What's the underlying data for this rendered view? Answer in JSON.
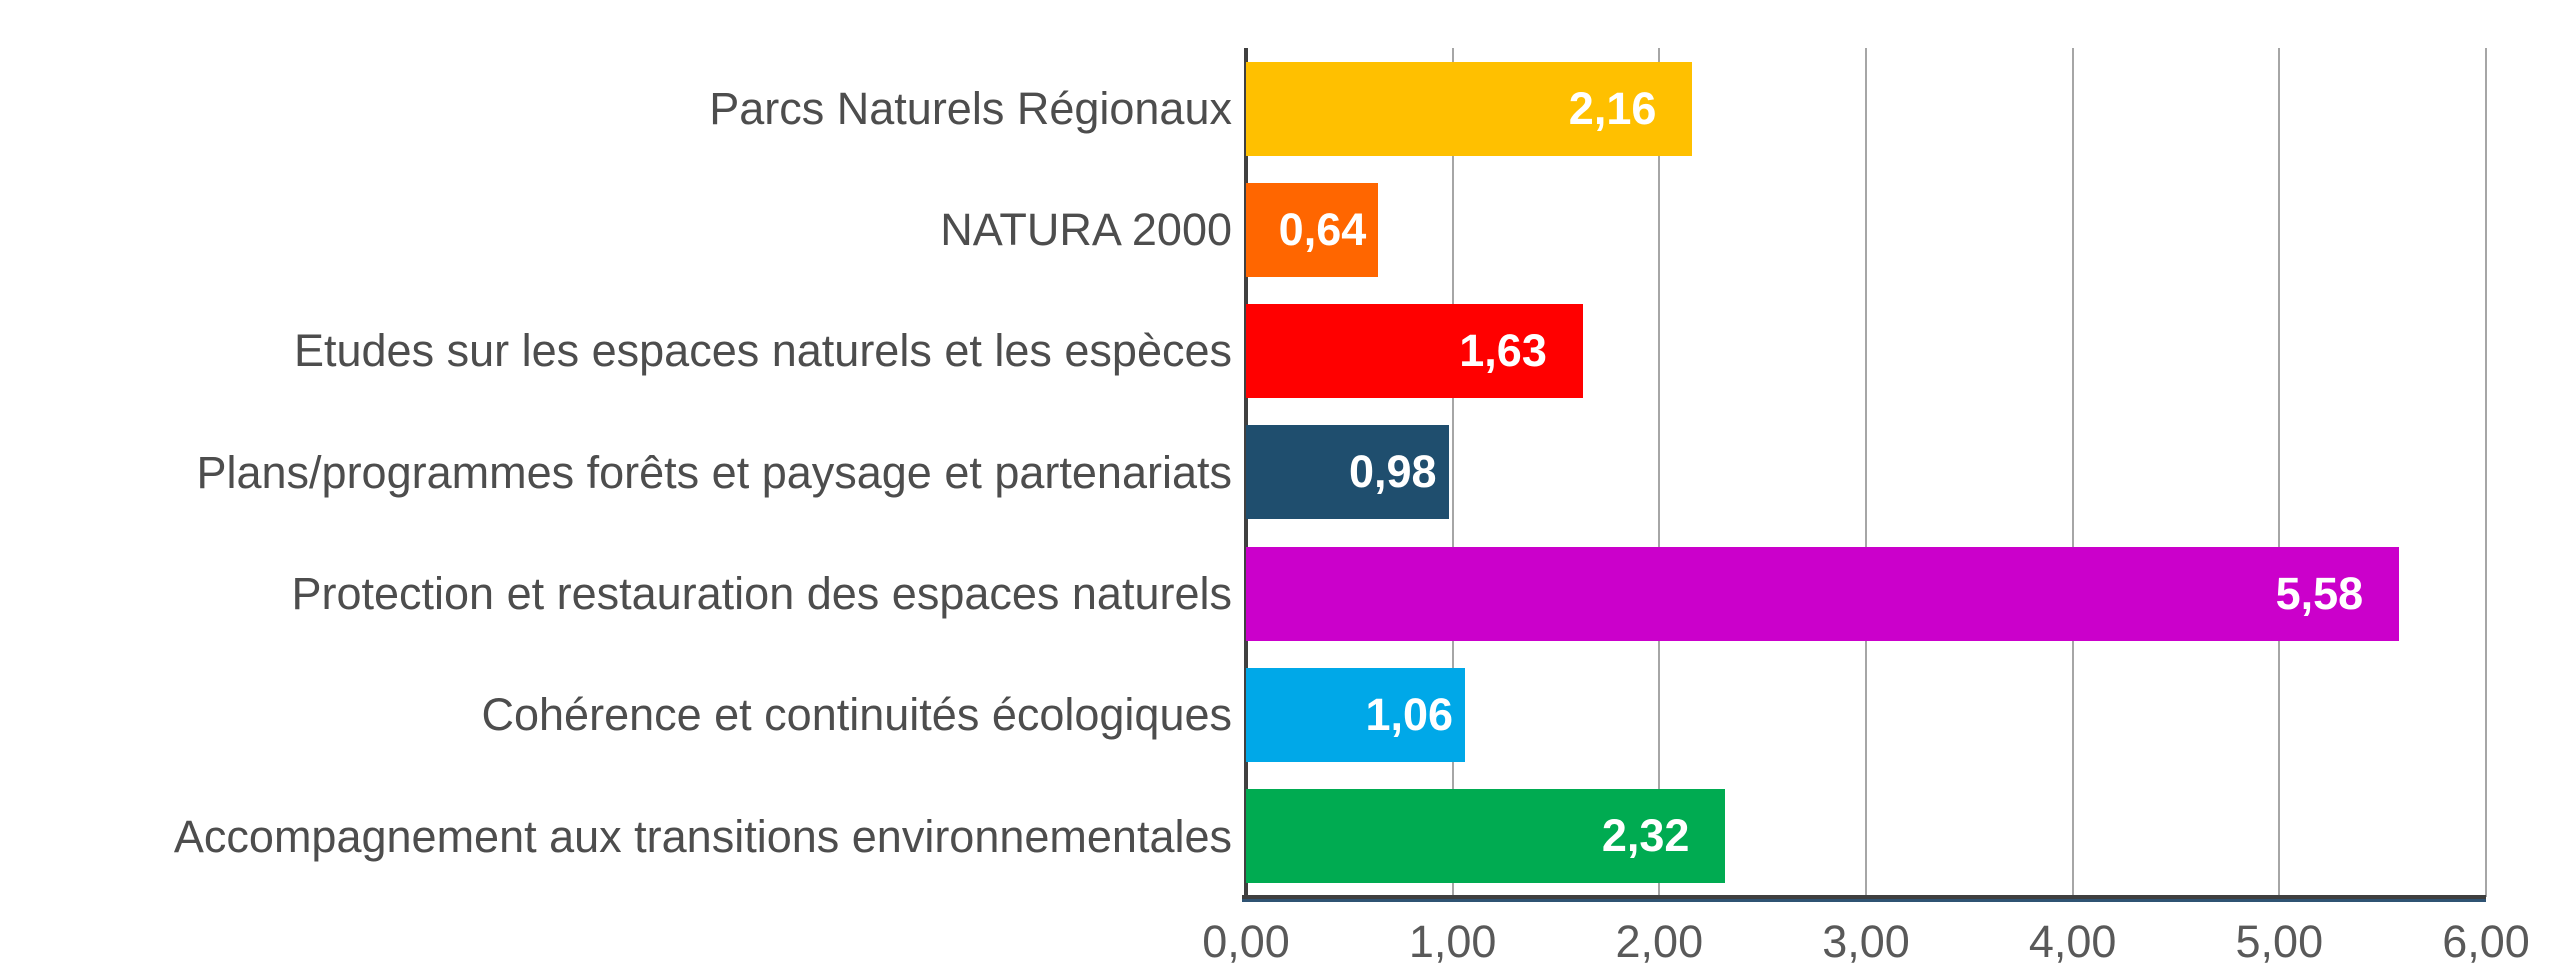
{
  "chart_data": {
    "type": "bar",
    "orientation": "horizontal",
    "title": "",
    "xlabel": "",
    "ylabel": "",
    "categories": [
      "Parcs Naturels Régionaux",
      "NATURA 2000",
      "Etudes sur les espaces naturels et les espèces",
      "Plans/programmes forêts et paysage et partenariats",
      "Protection et restauration des espaces naturels",
      "Cohérence et continuités écologiques",
      "Accompagnement aux transitions environnementales"
    ],
    "values": [
      2.16,
      0.64,
      1.63,
      0.98,
      5.58,
      1.06,
      2.32
    ],
    "value_labels": [
      "2,16",
      "0,64",
      "1,63",
      "0,98",
      "5,58",
      "1,06",
      "2,32"
    ],
    "bar_colors": [
      "#FFC000",
      "#FF6600",
      "#FF0000",
      "#1F4E6E",
      "#CB00CB",
      "#00A8E8",
      "#00AB51"
    ],
    "xlim": [
      0,
      6
    ],
    "x_tick_labels": [
      "0,00",
      "1,00",
      "2,00",
      "3,00",
      "4,00",
      "5,00",
      "6,00"
    ],
    "grid": true,
    "legend": false,
    "value_label_position": "inside-end",
    "decimal_separator": ","
  },
  "colors": {
    "background": "#FFFFFF",
    "gridline": "#A6A6A6",
    "axis_left": "#404040",
    "axis_bottom_top": "#3F3F3F",
    "axis_bottom_under": "#2F5373",
    "category_text": "#4D4D4D",
    "tick_text": "#595959",
    "value_text": "#FFFFFF"
  }
}
